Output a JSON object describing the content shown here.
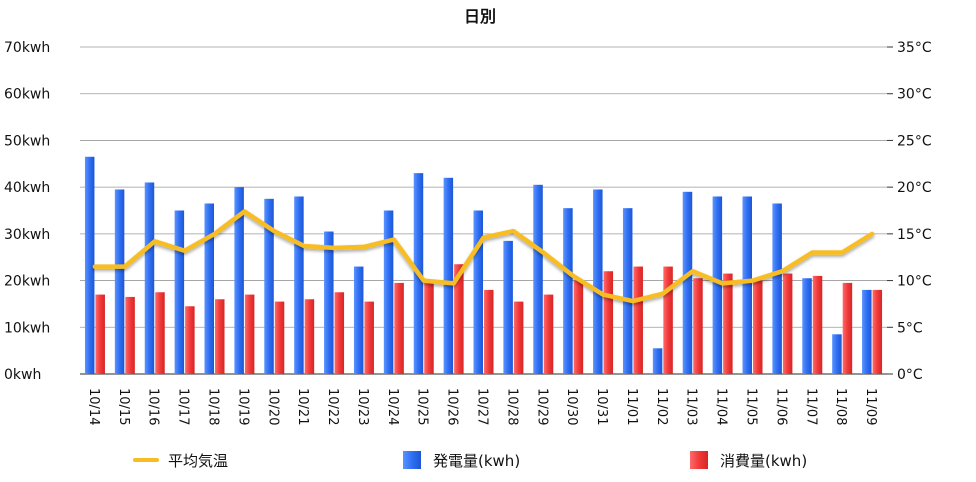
{
  "chart_data": {
    "type": "bar",
    "title": "日別",
    "categories": [
      "10/14",
      "10/15",
      "10/16",
      "10/17",
      "10/18",
      "10/19",
      "10/20",
      "10/21",
      "10/22",
      "10/23",
      "10/24",
      "10/25",
      "10/26",
      "10/27",
      "10/28",
      "10/29",
      "10/30",
      "10/31",
      "11/01",
      "11/02",
      "11/03",
      "11/04",
      "11/05",
      "11/06",
      "11/07",
      "11/08",
      "11/09"
    ],
    "left_axis": {
      "ylim": [
        0,
        70
      ],
      "ticks": [
        0,
        10,
        20,
        30,
        40,
        50,
        60,
        70
      ],
      "tick_labels": [
        "0kwh",
        "10kwh",
        "20kwh",
        "30kwh",
        "40kwh",
        "50kwh",
        "60kwh",
        "70kwh"
      ]
    },
    "right_axis": {
      "ylim": [
        0,
        35
      ],
      "ticks": [
        0,
        5,
        10,
        15,
        20,
        25,
        30,
        35
      ],
      "tick_labels": [
        "0°C",
        "5°C",
        "10°C",
        "15°C",
        "20°C",
        "25°C",
        "30°C",
        "35°C"
      ]
    },
    "grid": true,
    "legend_position": "bottom",
    "series": [
      {
        "name": "発電量(kwh)",
        "kind": "bar",
        "axis": "left",
        "color": "#2f6ff2",
        "values": [
          46.5,
          39.5,
          41,
          35,
          36.5,
          40,
          37.5,
          38,
          30.5,
          23,
          35,
          43,
          42,
          35,
          28.5,
          40.5,
          35.5,
          39.5,
          35.5,
          5.5,
          39,
          38,
          38,
          36.5,
          20.5,
          8.5,
          18
        ]
      },
      {
        "name": "消費量(kwh)",
        "kind": "bar",
        "axis": "left",
        "color": "#f23a3a",
        "values": [
          17,
          16.5,
          17.5,
          14.5,
          16,
          17,
          15.5,
          16,
          17.5,
          15.5,
          19.5,
          19.5,
          23.5,
          18,
          15.5,
          17,
          20,
          22,
          23,
          23,
          20.5,
          21.5,
          20,
          21.5,
          21,
          19.5,
          18
        ]
      },
      {
        "name": "平均気温",
        "kind": "line",
        "axis": "right",
        "color": "#f7bd23",
        "values": [
          11.5,
          11.5,
          14.2,
          13.2,
          15,
          17.4,
          15.3,
          13.7,
          13.5,
          13.6,
          14.4,
          10,
          9.7,
          14.6,
          15.3,
          13,
          10.5,
          8.5,
          7.8,
          8.6,
          11,
          9.7,
          10,
          11,
          13,
          13,
          15
        ]
      }
    ]
  }
}
